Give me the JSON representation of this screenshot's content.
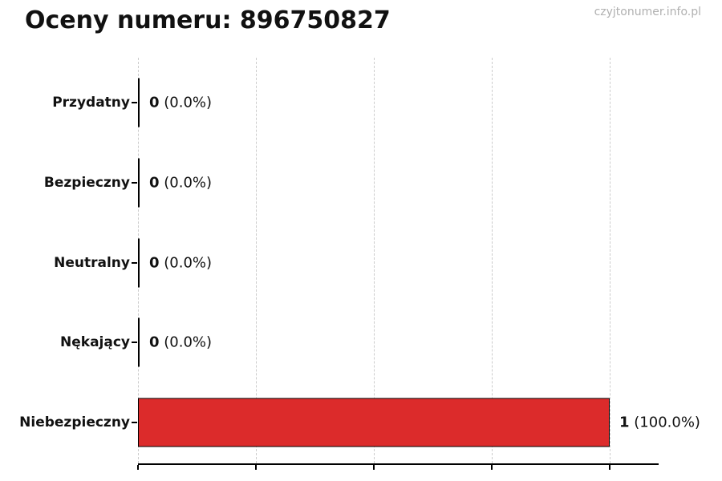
{
  "page": {
    "watermark": "czyjtonumer.info.pl"
  },
  "chart_data": {
    "type": "bar",
    "orientation": "horizontal",
    "title": "Oceny numeru: 896750827",
    "categories": [
      "Przydatny",
      "Bezpieczny",
      "Neutralny",
      "Nękający",
      "Niebezpieczny"
    ],
    "values": [
      0,
      0,
      0,
      0,
      1
    ],
    "count_labels": [
      "0",
      "0",
      "0",
      "0",
      "1"
    ],
    "percent_labels": [
      "(0.0%)",
      "(0.0%)",
      "(0.0%)",
      "(0.0%)",
      "(100.0%)"
    ],
    "xlim": [
      0,
      1.1
    ],
    "xticks": [
      0,
      0.25,
      0.5,
      0.75,
      1.0
    ],
    "grid": "vertical-dashed",
    "legend": "none",
    "colors": {
      "bar_fill": "#dc2b2b",
      "bar_edge": "#000000",
      "grid_line": "#cccccc",
      "axis_line": "#000000",
      "text": "#111111",
      "watermark": "#b0b0b0"
    }
  }
}
